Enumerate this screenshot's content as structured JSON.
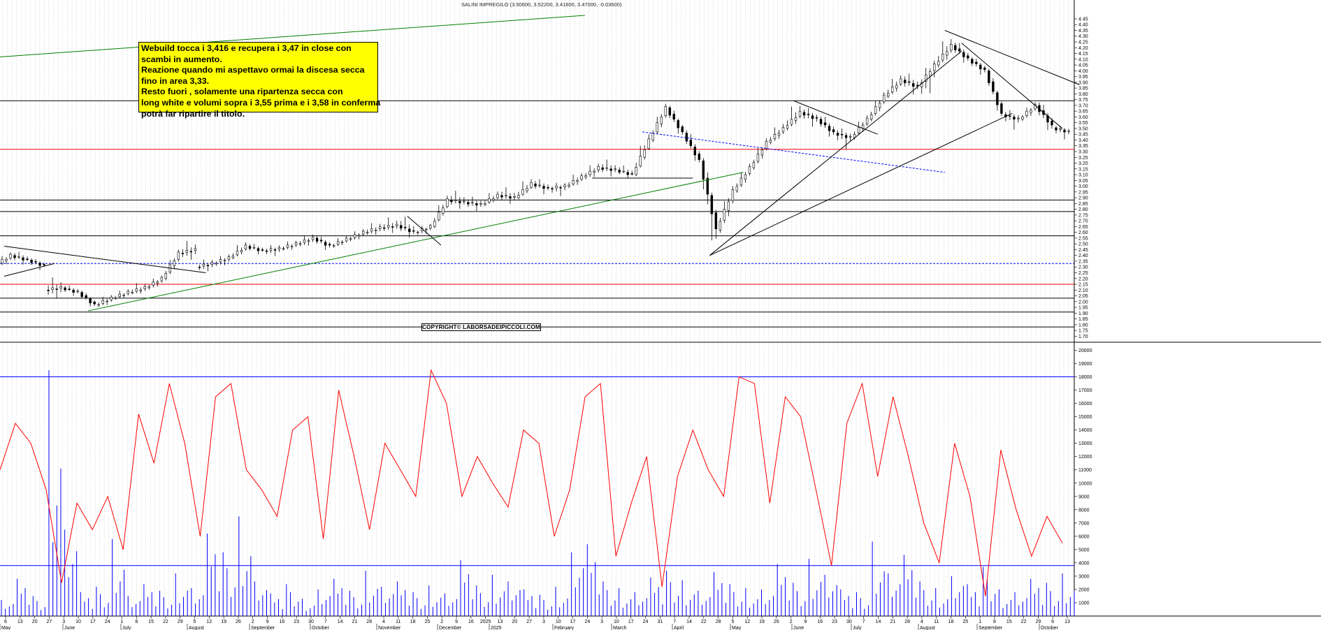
{
  "header": {
    "quote": "SALINI IMPREGILO (3.50600, 3.52200, 3.41600, 3.47000, -0.03600)"
  },
  "comment": {
    "lines": [
      "Webuild tocca i 3,416 e recupera i 3,47 in close con",
      "scambi in aumento.",
      "Reazione quando mi aspettavo ormai la discesa secca",
      "fino in area 3,33.",
      "Resto fuori , solamente una ripartenza secca con",
      "long white e volumi sopra i 3,55 prima e i 3,58 in conferma",
      "potrà far ripartire il titolo."
    ]
  },
  "copyright": "COPYRIGHT© LABORSADEIPICCOLI.COM",
  "colors": {
    "candle": "#000000",
    "oscillator": "#ff0000",
    "volume": "#0000ff",
    "support_red": "#ff0000",
    "trend_green": "#008000",
    "trend_blue_dashed": "#0000ff",
    "background": "#ffffff",
    "grid": "#b0b0b0"
  },
  "chart_data": [
    {
      "type": "candlestick",
      "title": "SALINI IMPREGILO",
      "y_ticks": [
        "1.70",
        "1.75",
        "1.80",
        "1.85",
        "1.90",
        "1.95",
        "2.00",
        "2.05",
        "2.10",
        "2.15",
        "2.20",
        "2.25",
        "2.30",
        "2.35",
        "2.40",
        "2.45",
        "2.50",
        "2.55",
        "2.60",
        "2.65",
        "2.70",
        "2.75",
        "2.80",
        "2.85",
        "2.90",
        "2.95",
        "3.00",
        "3.05",
        "3.10",
        "3.15",
        "3.20",
        "3.25",
        "3.30",
        "3.35",
        "3.40",
        "3.45",
        "3.50",
        "3.55",
        "3.60",
        "3.65",
        "3.70",
        "3.75",
        "3.80",
        "3.85",
        "3.90",
        "3.95",
        "4.00",
        "4.05",
        "4.10",
        "4.15",
        "4.20",
        "4.25",
        "4.30",
        "4.35",
        "4.40",
        "4.45"
      ],
      "ylim": [
        1.66,
        4.48
      ],
      "x_ticks": [
        "6",
        "13",
        "20",
        "27",
        "3",
        "10",
        "17",
        "24",
        "1",
        "8",
        "15",
        "22",
        "29",
        "5",
        "12",
        "19",
        "26",
        "2",
        "9",
        "16",
        "23",
        "30",
        "7",
        "14",
        "21",
        "28",
        "4",
        "11",
        "18",
        "25",
        "2",
        "9",
        "16",
        "2025",
        "13",
        "20",
        "27",
        "3",
        "10",
        "17",
        "24",
        "3",
        "10",
        "17",
        "24",
        "31",
        "7",
        "14",
        "22",
        "28",
        "5",
        "12",
        "19",
        "26",
        "2",
        "9",
        "16",
        "23",
        "30",
        "7",
        "14",
        "21",
        "28",
        "4",
        "11",
        "18",
        "25",
        "1",
        "8",
        "15",
        "22",
        "29",
        "6",
        "13"
      ],
      "x_month_labels": [
        "May",
        "June",
        "July",
        "August",
        "September",
        "October",
        "November",
        "December",
        "2025",
        "February",
        "March",
        "April",
        "May",
        "June",
        "July",
        "August",
        "September",
        "October"
      ],
      "ohlc_weekly": [
        [
          2.31,
          2.42,
          2.29,
          2.4
        ],
        [
          2.4,
          2.43,
          2.33,
          2.36
        ],
        [
          2.36,
          2.37,
          2.28,
          2.31
        ],
        [
          2.1,
          2.2,
          2.03,
          2.12
        ],
        [
          2.12,
          2.14,
          2.06,
          2.08
        ],
        [
          2.08,
          2.09,
          1.95,
          1.97
        ],
        [
          1.97,
          2.05,
          1.95,
          2.03
        ],
        [
          2.03,
          2.1,
          2.02,
          2.08
        ],
        [
          2.08,
          2.16,
          2.06,
          2.12
        ],
        [
          2.12,
          2.22,
          2.1,
          2.2
        ],
        [
          2.2,
          2.45,
          2.18,
          2.42
        ],
        [
          2.42,
          2.52,
          2.36,
          2.45
        ],
        [
          2.3,
          2.36,
          2.26,
          2.33
        ],
        [
          2.33,
          2.4,
          2.3,
          2.38
        ],
        [
          2.38,
          2.52,
          2.37,
          2.48
        ],
        [
          2.48,
          2.5,
          2.42,
          2.44
        ],
        [
          2.44,
          2.48,
          2.4,
          2.46
        ],
        [
          2.46,
          2.52,
          2.44,
          2.5
        ],
        [
          2.5,
          2.58,
          2.47,
          2.55
        ],
        [
          2.55,
          2.57,
          2.45,
          2.48
        ],
        [
          2.48,
          2.56,
          2.47,
          2.54
        ],
        [
          2.54,
          2.62,
          2.52,
          2.6
        ],
        [
          2.6,
          2.68,
          2.57,
          2.64
        ],
        [
          2.64,
          2.72,
          2.6,
          2.66
        ],
        [
          2.66,
          2.74,
          2.56,
          2.6
        ],
        [
          2.6,
          2.66,
          2.57,
          2.65
        ],
        [
          2.65,
          2.93,
          2.64,
          2.88
        ],
        [
          2.88,
          2.95,
          2.82,
          2.86
        ],
        [
          2.86,
          2.9,
          2.8,
          2.84
        ],
        [
          2.84,
          2.96,
          2.83,
          2.92
        ],
        [
          2.92,
          2.98,
          2.86,
          2.9
        ],
        [
          2.9,
          3.08,
          2.89,
          3.02
        ],
        [
          3.02,
          3.06,
          2.94,
          2.98
        ],
        [
          2.98,
          3.02,
          2.92,
          3.0
        ],
        [
          3.0,
          3.12,
          2.98,
          3.08
        ],
        [
          3.08,
          3.2,
          3.05,
          3.16
        ],
        [
          3.16,
          3.22,
          3.1,
          3.14
        ],
        [
          3.14,
          3.18,
          3.08,
          3.1
        ],
        [
          3.1,
          3.48,
          3.09,
          3.4
        ],
        [
          3.4,
          3.72,
          3.38,
          3.68
        ],
        [
          3.68,
          3.7,
          3.42,
          3.46
        ],
        [
          3.46,
          3.5,
          3.18,
          3.22
        ],
        [
          3.22,
          3.26,
          2.4,
          2.62
        ],
        [
          2.62,
          3.02,
          2.58,
          2.96
        ],
        [
          2.96,
          3.2,
          2.94,
          3.16
        ],
        [
          3.16,
          3.42,
          3.14,
          3.38
        ],
        [
          3.38,
          3.55,
          3.36,
          3.5
        ],
        [
          3.5,
          3.74,
          3.48,
          3.64
        ],
        [
          3.64,
          3.68,
          3.52,
          3.58
        ],
        [
          3.58,
          3.62,
          3.42,
          3.46
        ],
        [
          3.46,
          3.5,
          3.33,
          3.42
        ],
        [
          3.42,
          3.62,
          3.4,
          3.58
        ],
        [
          3.58,
          3.82,
          3.56,
          3.78
        ],
        [
          3.78,
          3.98,
          3.76,
          3.92
        ],
        [
          3.92,
          3.98,
          3.8,
          3.86
        ],
        [
          3.86,
          4.1,
          3.72,
          4.05
        ],
        [
          4.05,
          4.32,
          4.02,
          4.22
        ],
        [
          4.22,
          4.26,
          4.06,
          4.1
        ],
        [
          4.1,
          4.12,
          3.96,
          4.0
        ],
        [
          4.0,
          4.02,
          3.58,
          3.62
        ],
        [
          3.62,
          3.66,
          3.5,
          3.58
        ],
        [
          3.58,
          3.72,
          3.56,
          3.7
        ],
        [
          3.7,
          3.74,
          3.46,
          3.52
        ],
        [
          3.506,
          3.522,
          3.416,
          3.47
        ]
      ],
      "horizontal_lines": [
        {
          "value": 3.74,
          "color": "#000000",
          "style": "solid"
        },
        {
          "value": 3.32,
          "color": "#ff0000",
          "style": "solid"
        },
        {
          "value": 2.88,
          "color": "#000000",
          "style": "solid"
        },
        {
          "value": 2.78,
          "color": "#000000",
          "style": "solid"
        },
        {
          "value": 2.57,
          "color": "#000000",
          "style": "solid"
        },
        {
          "value": 2.33,
          "color": "#0000ff",
          "style": "dashed"
        },
        {
          "value": 2.15,
          "color": "#ff0000",
          "style": "solid"
        },
        {
          "value": 2.03,
          "color": "#000000",
          "style": "solid"
        },
        {
          "value": 1.91,
          "color": "#000000",
          "style": "solid"
        },
        {
          "value": 1.78,
          "color": "#000000",
          "style": "solid"
        }
      ]
    },
    {
      "type": "line",
      "series": [
        {
          "color": "#ff0000",
          "values": [
            11000,
            14500,
            13000,
            9500,
            2500,
            8500,
            6500,
            9000,
            5000,
            15200,
            11500,
            17500,
            13000,
            6000,
            16500,
            17500,
            11000,
            9500,
            7500,
            14000,
            15000,
            5800,
            17000,
            12000,
            6500,
            13000,
            11000,
            9000,
            18500,
            16000,
            9000,
            12000,
            10000,
            8200,
            14000,
            13000,
            6000,
            9500,
            16500,
            17500,
            4500,
            8500,
            12000,
            2200,
            10500,
            14000,
            11000,
            9000,
            18000,
            17500,
            8500,
            16500,
            15000,
            9500,
            3800,
            14500,
            17500,
            10500,
            16500,
            12000,
            7000,
            4000,
            13000,
            9000,
            1500,
            12500,
            8000,
            4500,
            7500,
            5500
          ]
        }
      ],
      "ylim": [
        0,
        20500
      ],
      "y_ticks": [
        "1000",
        "2000",
        "3000",
        "4000",
        "5000",
        "6000",
        "7000",
        "8000",
        "9000",
        "10000",
        "11000",
        "12000",
        "13000",
        "14000",
        "15000",
        "16000",
        "17000",
        "18000",
        "19000",
        "20000"
      ],
      "horizontal_lines": [
        {
          "value": 18000,
          "color": "#0000ff"
        },
        {
          "value": 3800,
          "color": "#0000ff"
        }
      ],
      "volume_bars": {
        "color": "#0000ff",
        "values": [
          1200,
          2800,
          1500,
          18500,
          6500,
          1800,
          2200,
          5800,
          1500,
          2400,
          1900,
          3200,
          2100,
          6200,
          4800,
          7500,
          2600,
          1700,
          2400,
          1300,
          2000,
          2800,
          1900,
          3400,
          2200,
          2600,
          1800,
          2300,
          1700,
          4200,
          2300,
          3100,
          2600,
          2000,
          1600,
          2200,
          4800,
          5400,
          2600,
          2100,
          1800,
          2900,
          3400,
          2700,
          1900,
          3300,
          2400,
          2100,
          2000,
          3900,
          2500,
          4300,
          3100,
          2000,
          1800,
          5600,
          3200,
          4600,
          2600,
          2100,
          3000,
          2400,
          3700,
          2000,
          1800,
          2800,
          2500,
          3200
        ]
      }
    }
  ]
}
